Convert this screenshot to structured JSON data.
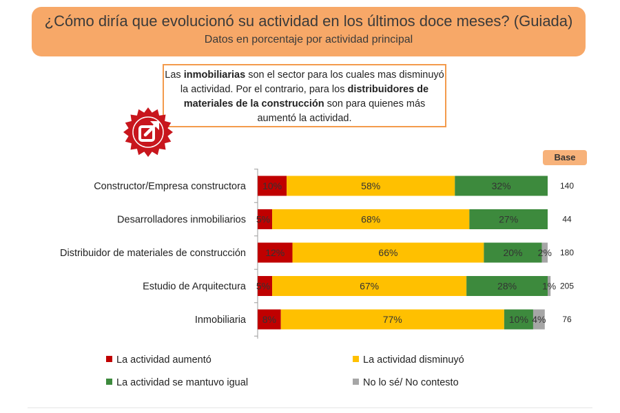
{
  "header": {
    "title": "¿Cómo diría que evolucionó su actividad en los últimos doce meses? (Guiada)",
    "subtitle": "Datos en porcentaje por actividad principal"
  },
  "callout": {
    "t1": "Las ",
    "b1": "inmobiliarias",
    "t2": " son el sector para los cuales mas disminuyó la actividad. Por el contrario,  para los ",
    "b2": "distribuidores de materiales de la construcción",
    "t3": " son para quienes más aumentó la actividad."
  },
  "badge_icon": "external-link-icon",
  "base_label": "Base",
  "colors": {
    "aumento": "#c00000",
    "disminuyo": "#ffc000",
    "igual": "#3d8a3d",
    "ns": "#a6a6a6",
    "badge": "#c8161d"
  },
  "chart_data": {
    "type": "bar",
    "orientation": "horizontal",
    "stacked": true,
    "categories": [
      "Constructor/Empresa constructora",
      "Desarrolladores inmobiliarios",
      "Distribuidor de materiales de construcción",
      "Estudio de Arquitectura",
      "Inmobiliaria"
    ],
    "series": [
      {
        "name": "La actividad aumentó",
        "values": [
          10,
          5,
          12,
          5,
          8
        ],
        "labels": [
          "10%",
          "5%",
          "12%",
          "5%",
          "8%"
        ],
        "color": "#c00000"
      },
      {
        "name": "La actividad disminuyó",
        "values": [
          58,
          68,
          66,
          67,
          77
        ],
        "labels": [
          "58%",
          "68%",
          "66%",
          "67%",
          "77%"
        ],
        "color": "#ffc000"
      },
      {
        "name": "La actividad se mantuvo igual",
        "values": [
          32,
          27,
          20,
          28,
          10
        ],
        "labels": [
          "32%",
          "27%",
          "20%",
          "28%",
          "10%"
        ],
        "color": "#3d8a3d"
      },
      {
        "name": "No lo sé/ No contesto",
        "values": [
          0,
          0,
          2,
          1,
          4
        ],
        "labels": [
          "",
          "",
          "2%",
          "1%",
          "4%"
        ],
        "color": "#a6a6a6"
      }
    ],
    "base": [
      "140",
      "44",
      "180",
      "205",
      "76"
    ],
    "xlim": [
      0,
      100
    ],
    "legend_position": "bottom"
  }
}
